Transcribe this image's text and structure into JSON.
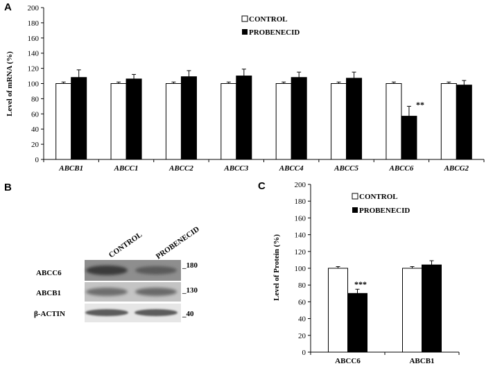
{
  "panels": {
    "a": {
      "letter": "A"
    },
    "b": {
      "letter": "B"
    },
    "c": {
      "letter": "C"
    }
  },
  "chart_data": [
    {
      "type": "bar",
      "panel": "A",
      "title": "",
      "xlabel": "",
      "ylabel": "Level of mRNA (%)",
      "ylim": [
        0,
        200
      ],
      "yticks": [
        0,
        20,
        40,
        60,
        80,
        100,
        120,
        140,
        160,
        180,
        200
      ],
      "categories": [
        "ABCB1",
        "ABCC1",
        "ABCC2",
        "ABCC3",
        "ABCC4",
        "ABCC5",
        "ABCC6",
        "ABCG2"
      ],
      "series": [
        {
          "name": "CONTROL",
          "color": "#ffffff",
          "values": [
            100,
            100,
            100,
            100,
            100,
            100,
            100,
            100
          ],
          "errors": [
            2,
            2,
            2,
            2,
            2,
            2,
            2,
            2
          ]
        },
        {
          "name": "PROBENECID",
          "color": "#000000",
          "values": [
            108,
            106,
            109,
            110,
            108,
            107,
            57,
            98
          ],
          "errors": [
            10,
            6,
            8,
            9,
            7,
            8,
            13,
            6
          ]
        }
      ],
      "annotations": [
        {
          "category": "ABCC6",
          "text": "**"
        }
      ],
      "legend": "top-center"
    },
    {
      "type": "bar",
      "panel": "C",
      "title": "",
      "xlabel": "",
      "ylabel": "Level of Protein (%)",
      "ylim": [
        0,
        200
      ],
      "yticks": [
        0,
        20,
        40,
        60,
        80,
        100,
        120,
        140,
        160,
        180,
        200
      ],
      "categories": [
        "ABCC6",
        "ABCB1"
      ],
      "series": [
        {
          "name": "CONTROL",
          "color": "#ffffff",
          "values": [
            100,
            100
          ],
          "errors": [
            2,
            2
          ]
        },
        {
          "name": "PROBENECID",
          "color": "#000000",
          "values": [
            70,
            104
          ],
          "errors": [
            5,
            5
          ]
        }
      ],
      "annotations": [
        {
          "category": "ABCC6",
          "text": "***"
        }
      ],
      "legend": "top-center"
    }
  ],
  "blot": {
    "columns": [
      "CONTROL",
      "PROBENECID"
    ],
    "rows": [
      {
        "label": "ABCC6",
        "marker": "_180"
      },
      {
        "label": "ABCB1",
        "marker": "_130"
      },
      {
        "label": "β-ACTIN",
        "marker": "_40"
      }
    ]
  }
}
